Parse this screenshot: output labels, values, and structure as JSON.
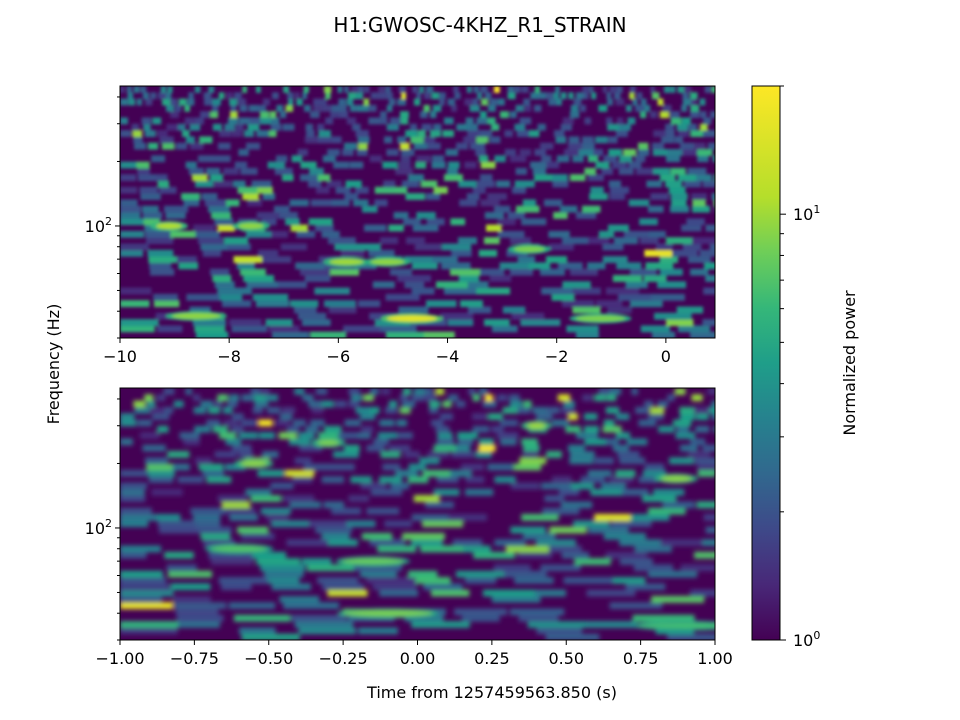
{
  "title": "H1:GWOSC-4KHZ_R1_STRAIN",
  "ylabel": "Frequency (Hz)",
  "xlabel": "Time from 1257459563.850 (s)",
  "colorbar": {
    "label": "Normalized power",
    "scale": "log",
    "range": [
      1,
      20
    ],
    "ticks": [
      {
        "value": 1,
        "base": "10",
        "exp": "0"
      },
      {
        "value": 10,
        "base": "10",
        "exp": "1"
      }
    ],
    "colormap": "viridis"
  },
  "chart_data": [
    {
      "type": "heatmap",
      "panel": "top",
      "x_range": [
        -10,
        0.9
      ],
      "y_scale": "log",
      "y_range": [
        30,
        450
      ],
      "x_ticks": [
        "−10",
        "−8",
        "−6",
        "−4",
        "−2",
        "0"
      ],
      "x_tick_values": [
        -10,
        -8,
        -6,
        -4,
        -2,
        0
      ],
      "y_ticks": [
        {
          "value": 100,
          "base": "10",
          "exp": "2"
        }
      ],
      "grid": false,
      "hotspots": [
        {
          "t": -4.65,
          "f": 37,
          "power": 18
        },
        {
          "t": -8.6,
          "f": 38,
          "power": 12
        },
        {
          "t": -5.85,
          "f": 68,
          "power": 13
        },
        {
          "t": -5.1,
          "f": 68,
          "power": 12
        },
        {
          "t": -9.1,
          "f": 100,
          "power": 14
        },
        {
          "t": -7.6,
          "f": 100,
          "power": 12
        },
        {
          "t": -2.5,
          "f": 78,
          "power": 11
        },
        {
          "t": -1.2,
          "f": 37,
          "power": 11
        }
      ]
    },
    {
      "type": "heatmap",
      "panel": "bottom",
      "x_range": [
        -1.0,
        1.0
      ],
      "y_scale": "log",
      "y_range": [
        30,
        450
      ],
      "x_ticks": [
        "−1.00",
        "−0.75",
        "−0.50",
        "−0.25",
        "0.00",
        "0.25",
        "0.50",
        "0.75",
        "1.00"
      ],
      "x_tick_values": [
        -1.0,
        -0.75,
        -0.5,
        -0.25,
        0.0,
        0.25,
        0.5,
        0.75,
        1.0
      ],
      "y_ticks": [
        {
          "value": 100,
          "base": "10",
          "exp": "2"
        }
      ],
      "grid": false,
      "hotspots": [
        {
          "t": -0.1,
          "f": 40,
          "power": 11
        },
        {
          "t": -0.55,
          "f": 200,
          "power": 12
        },
        {
          "t": 0.4,
          "f": 300,
          "power": 13
        },
        {
          "t": -0.3,
          "f": 250,
          "power": 11
        },
        {
          "t": 0.87,
          "f": 170,
          "power": 12
        },
        {
          "t": -0.6,
          "f": 80,
          "power": 9
        },
        {
          "t": -0.15,
          "f": 70,
          "power": 10
        },
        {
          "t": 0.9,
          "f": 35,
          "power": 8
        }
      ]
    }
  ]
}
